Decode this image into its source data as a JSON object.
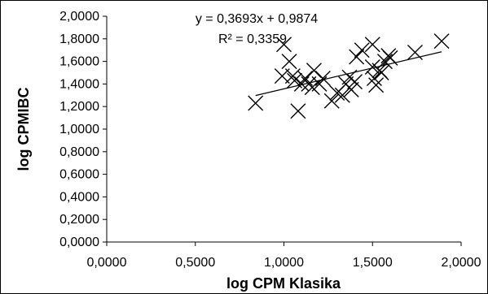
{
  "chart_data": {
    "type": "scatter",
    "xlabel": "log CPM Klasika",
    "ylabel": "log CPMIBC",
    "xlim": [
      0,
      2
    ],
    "ylim": [
      0,
      2
    ],
    "x_ticks": [
      "0,0000",
      "0,5000",
      "1,0000",
      "1,5000",
      "2,0000"
    ],
    "y_ticks": [
      "0,0000",
      "0,2000",
      "0,4000",
      "0,6000",
      "0,8000",
      "1,0000",
      "1,2000",
      "1,4000",
      "1,6000",
      "1,8000",
      "2,0000"
    ],
    "grid": false,
    "marker": "x",
    "points": [
      {
        "x": 0.84,
        "y": 1.23
      },
      {
        "x": 0.99,
        "y": 1.47
      },
      {
        "x": 1.0,
        "y": 1.75
      },
      {
        "x": 1.03,
        "y": 1.6
      },
      {
        "x": 1.05,
        "y": 1.47
      },
      {
        "x": 1.06,
        "y": 1.43
      },
      {
        "x": 1.08,
        "y": 1.16
      },
      {
        "x": 1.1,
        "y": 1.4
      },
      {
        "x": 1.12,
        "y": 1.45
      },
      {
        "x": 1.14,
        "y": 1.4
      },
      {
        "x": 1.16,
        "y": 1.37
      },
      {
        "x": 1.17,
        "y": 1.52
      },
      {
        "x": 1.2,
        "y": 1.4
      },
      {
        "x": 1.22,
        "y": 1.45
      },
      {
        "x": 1.27,
        "y": 1.25
      },
      {
        "x": 1.3,
        "y": 1.32
      },
      {
        "x": 1.33,
        "y": 1.3
      },
      {
        "x": 1.35,
        "y": 1.4
      },
      {
        "x": 1.37,
        "y": 1.46
      },
      {
        "x": 1.38,
        "y": 1.35
      },
      {
        "x": 1.4,
        "y": 1.42
      },
      {
        "x": 1.41,
        "y": 1.64
      },
      {
        "x": 1.44,
        "y": 1.7
      },
      {
        "x": 1.5,
        "y": 1.75
      },
      {
        "x": 1.5,
        "y": 1.55
      },
      {
        "x": 1.51,
        "y": 1.45
      },
      {
        "x": 1.52,
        "y": 1.39
      },
      {
        "x": 1.54,
        "y": 1.52
      },
      {
        "x": 1.55,
        "y": 1.5
      },
      {
        "x": 1.57,
        "y": 1.6
      },
      {
        "x": 1.59,
        "y": 1.65
      },
      {
        "x": 1.6,
        "y": 1.63
      },
      {
        "x": 1.74,
        "y": 1.68
      },
      {
        "x": 1.89,
        "y": 1.78
      }
    ],
    "trendline": {
      "slope": 0.3693,
      "intercept": 0.9874,
      "x_range": [
        0.84,
        1.89
      ]
    },
    "annotations": {
      "equation": "y = 0,3693x + 0,9874",
      "r2": "R² = 0,3359"
    }
  }
}
